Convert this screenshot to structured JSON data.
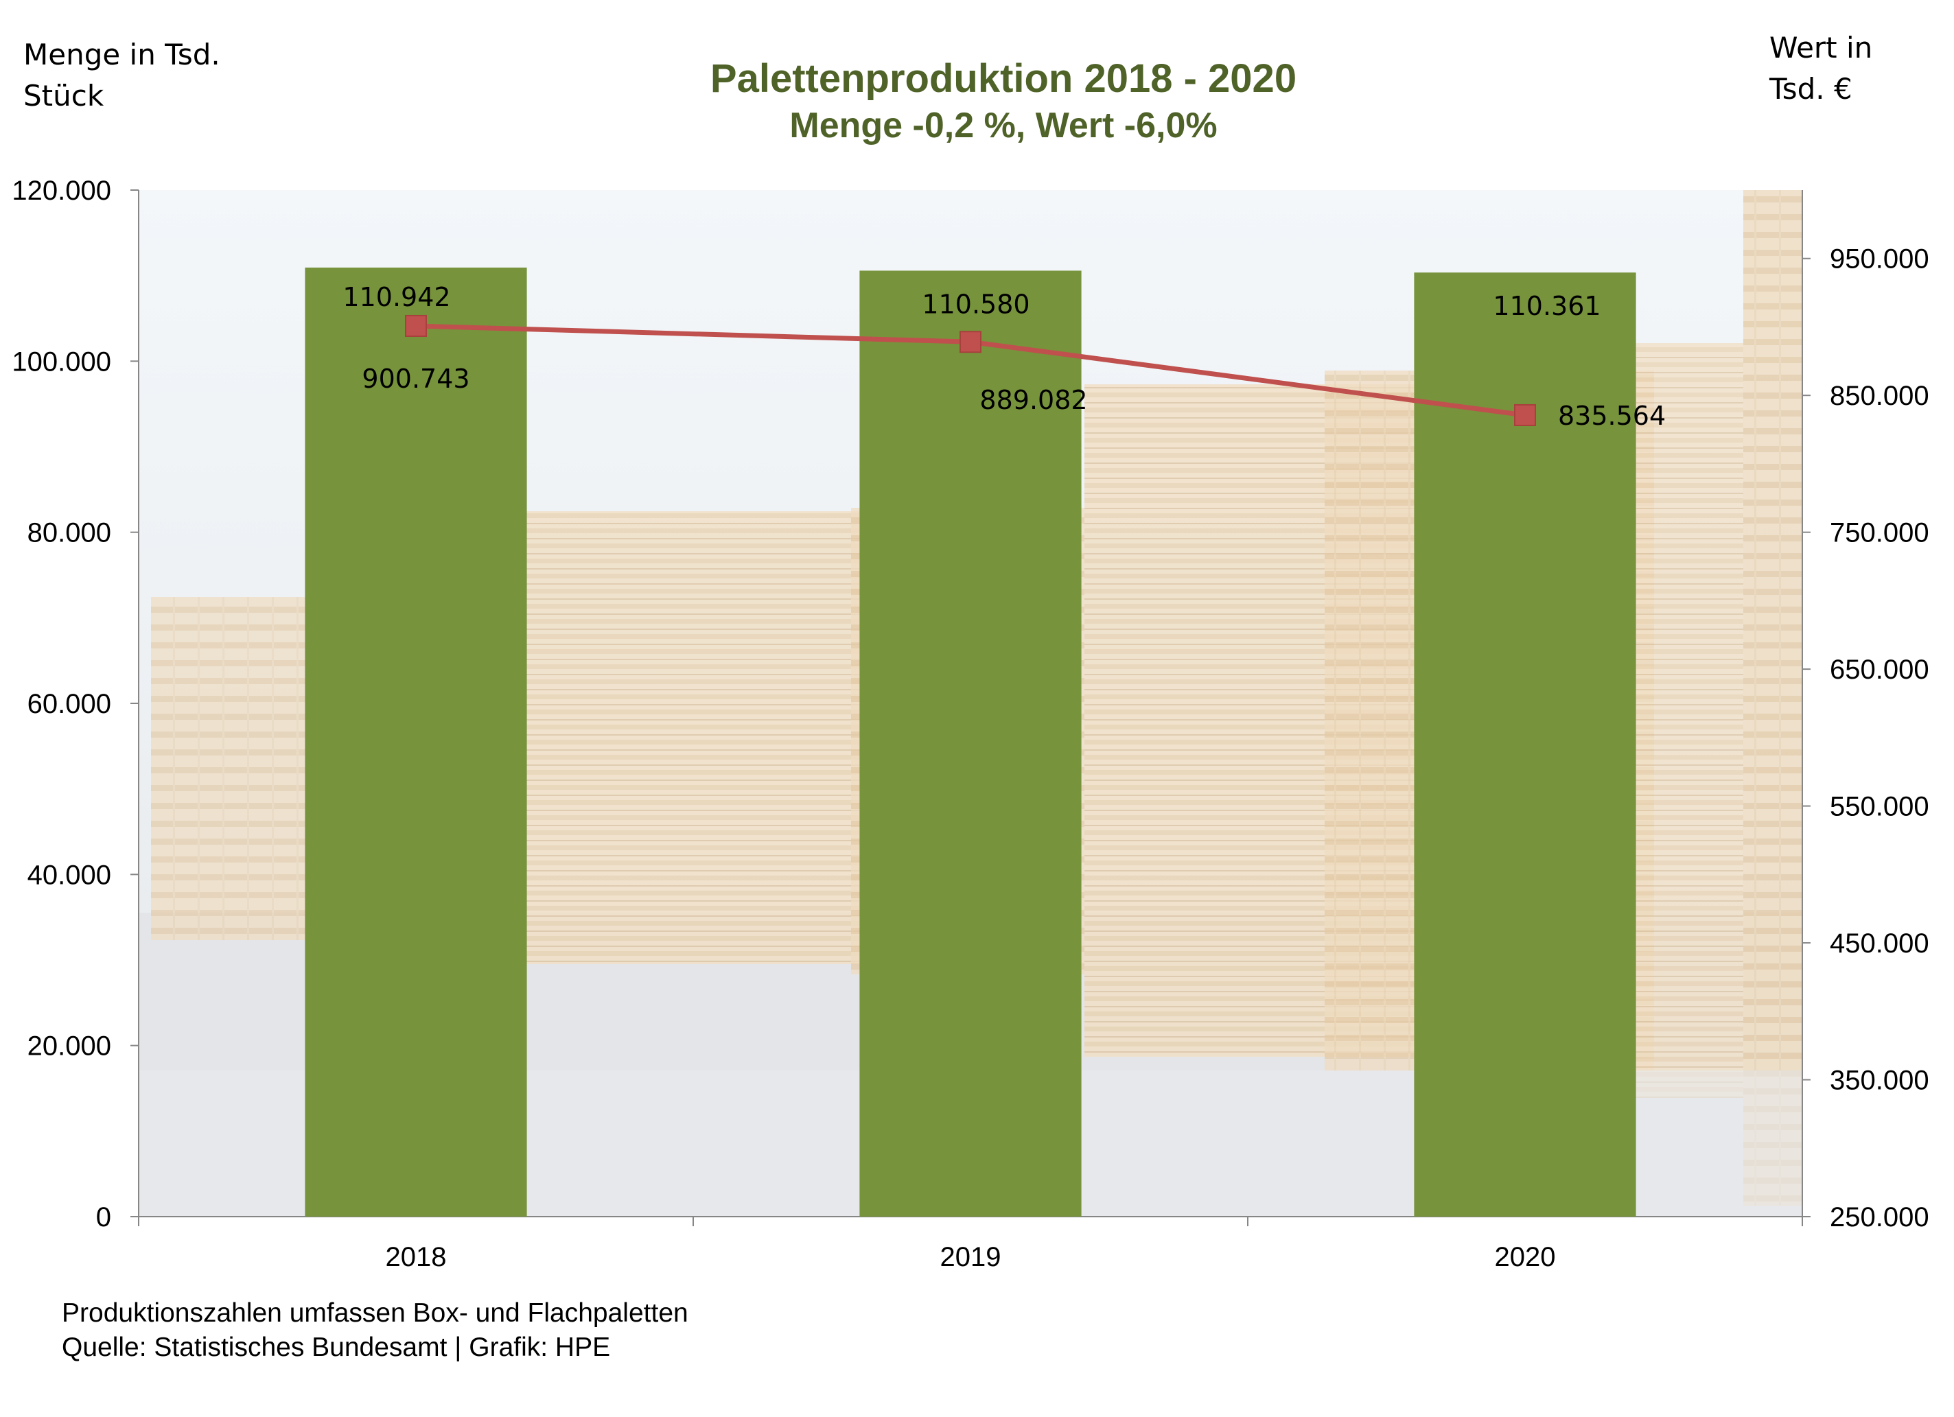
{
  "left_axis_unit": [
    "Menge in Tsd.",
    "Stück"
  ],
  "right_axis_unit": [
    "Wert in",
    "Tsd. €"
  ],
  "footnote": [
    "Produktionszahlen umfassen Box- und Flachpaletten",
    "Quelle: Statistisches Bundesamt | Grafik: HPE"
  ],
  "chart_data": {
    "type": "bar",
    "title": "Palettenproduktion 2018 - 2020",
    "subtitle": "Menge -0,2 %, Wert -6,0%",
    "categories": [
      "2018",
      "2019",
      "2020"
    ],
    "series": [
      {
        "type": "bar",
        "axis": "left",
        "values": [
          110942,
          110580,
          110361
        ],
        "labels": [
          "110.942",
          "110.580",
          "110.361"
        ],
        "color": "#77933c"
      },
      {
        "type": "line",
        "axis": "right",
        "values": [
          900743,
          889082,
          835564
        ],
        "labels": [
          "900.743",
          "889.082",
          "835.564"
        ],
        "color": "#c0504d"
      }
    ],
    "y_left": {
      "min": 0,
      "max": 120000,
      "ticks": [
        0,
        20000,
        40000,
        60000,
        80000,
        100000,
        120000
      ],
      "tick_labels": [
        "0",
        "20.000",
        "40.000",
        "60.000",
        "80.000",
        "100.000",
        "120.000"
      ]
    },
    "y_right": {
      "min": 250000,
      "max": 1000000,
      "ticks": [
        250000,
        350000,
        450000,
        550000,
        650000,
        750000,
        850000,
        950000
      ],
      "tick_labels": [
        "250.000",
        "350.000",
        "450.000",
        "550.000",
        "650.000",
        "750.000",
        "850.000",
        "950.000"
      ]
    },
    "grid": false,
    "legend": "none",
    "background": "photo of stacked wooden pallets",
    "colors": {
      "bar": "#77933c",
      "line": "#c0504d",
      "title": "#4f6228"
    }
  }
}
